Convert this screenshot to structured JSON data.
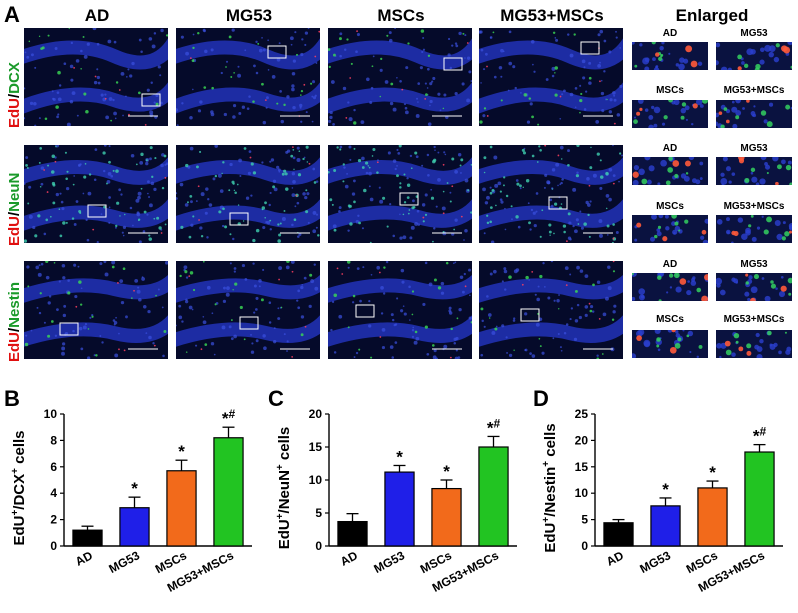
{
  "panels": {
    "A": "A",
    "B": "B",
    "C": "C",
    "D": "D"
  },
  "column_headers": [
    "AD",
    "MG53",
    "MSCs",
    "MG53+MSCs"
  ],
  "enlarged_header": "Enlarged",
  "enlarged_labels": [
    "AD",
    "MG53",
    "MSCs",
    "MG53+MSCs"
  ],
  "row_labels": [
    {
      "red": "EdU",
      "sep": "/",
      "green": "DCX"
    },
    {
      "red": "EdU",
      "sep": "/",
      "green": "NeuN"
    },
    {
      "red": "EdU",
      "sep": "/",
      "green": "Nestin"
    }
  ],
  "colors": {
    "AD": "#000000",
    "MG53": "#1f1fe8",
    "MSCs": "#f26a1b",
    "MG53+MSCs": "#22c422"
  },
  "chart_data": [
    {
      "type": "bar",
      "categories": [
        "AD",
        "MG53",
        "MSCs",
        "MG53+MSCs"
      ],
      "values": [
        1.2,
        2.9,
        5.7,
        8.2
      ],
      "errors": [
        0.3,
        0.8,
        0.8,
        0.8
      ],
      "annotations": [
        "",
        "*",
        "*",
        "*#"
      ],
      "ylabel": {
        "pre": "EdU",
        "sup1": "+",
        "mid": "/DCX",
        "sup2": "+",
        "post": " cells"
      },
      "ylim": [
        0,
        10
      ],
      "yticks": [
        0,
        2,
        4,
        6,
        8,
        10
      ]
    },
    {
      "type": "bar",
      "categories": [
        "AD",
        "MG53",
        "MSCs",
        "MG53+MSCs"
      ],
      "values": [
        3.7,
        11.2,
        8.7,
        15.0
      ],
      "errors": [
        1.2,
        1.0,
        1.3,
        1.6
      ],
      "annotations": [
        "",
        "*",
        "*",
        "*#"
      ],
      "ylabel": {
        "pre": "EdU",
        "sup1": "+",
        "mid": "/NeuN",
        "sup2": "+",
        "post": " cells"
      },
      "ylim": [
        0,
        20
      ],
      "yticks": [
        0,
        5,
        10,
        15,
        20
      ]
    },
    {
      "type": "bar",
      "categories": [
        "AD",
        "MG53",
        "MSCs",
        "MG53+MSCs"
      ],
      "values": [
        4.4,
        7.6,
        11.0,
        17.8
      ],
      "errors": [
        0.6,
        1.5,
        1.3,
        1.4
      ],
      "annotations": [
        "",
        "*",
        "*",
        "*#"
      ],
      "ylabel": {
        "pre": "EdU",
        "sup1": "+",
        "mid": "/Nestin",
        "sup2": "+",
        "post": " cells"
      },
      "ylim": [
        0,
        25
      ],
      "yticks": [
        0,
        5,
        10,
        15,
        20,
        25
      ]
    }
  ]
}
